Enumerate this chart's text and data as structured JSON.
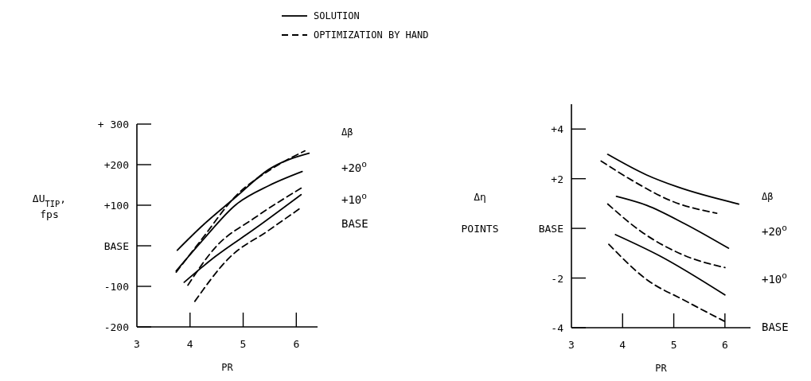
{
  "chart_data": [
    {
      "type": "line",
      "xlabel": "PR",
      "ylabel": "ΔU$_{TIP}$,\nfps",
      "legend": "top",
      "xlim": [
        3,
        6.4
      ],
      "xticks": [
        3,
        4,
        5,
        6
      ],
      "ylim": [
        -200,
        300
      ],
      "yticks": [
        {
          "value": -200,
          "label": "-200"
        },
        {
          "value": -100,
          "label": "-100"
        },
        {
          "value": 0,
          "label": "BASE"
        },
        {
          "value": 100,
          "label": "+100"
        },
        {
          "value": 200,
          "label": "+200"
        },
        {
          "value": 300,
          "label": "+ 300"
        }
      ],
      "annotations": [
        "Δβ",
        "+20$^{o}$",
        "+10$^{o}$",
        "BASE"
      ],
      "series": [
        {
          "name": "SOLUTION",
          "color": "#000000",
          "line_style": "solid",
          "x": [
            3.76,
            4.22,
            4.87,
            5.48,
            6.24
          ],
          "values": [
            -11,
            48,
            121,
            188,
            228
          ]
        },
        {
          "name": "OPTIMIZATION BY HAND",
          "color": "#000000",
          "line_style": "dashed",
          "x": [
            3.74,
            4.22,
            4.87,
            5.48,
            6.16
          ],
          "values": [
            -65,
            16,
            124,
            185,
            234
          ]
        },
        {
          "color": "#000000",
          "line_style": "solid",
          "x": [
            3.74,
            4.22,
            4.87,
            5.48,
            6.11
          ],
          "values": [
            -62,
            11,
            102,
            148,
            183
          ]
        },
        {
          "color": "#000000",
          "line_style": "dashed",
          "x": [
            3.96,
            4.47,
            5.23,
            6.09
          ],
          "values": [
            -97,
            -5,
            70,
            142
          ]
        },
        {
          "color": "#000000",
          "line_style": "solid",
          "x": [
            3.89,
            4.47,
            5.23,
            6.09
          ],
          "values": [
            -90,
            -27,
            43,
            126
          ]
        },
        {
          "color": "#000000",
          "line_style": "dashed",
          "x": [
            4.09,
            4.72,
            5.48,
            6.09
          ],
          "values": [
            -137,
            -32,
            38,
            94
          ]
        }
      ]
    },
    {
      "type": "line",
      "xlabel": "PR",
      "ylabel": "Δη\n\nPOINTS",
      "xlim": [
        3,
        6.5
      ],
      "xticks": [
        3,
        4,
        5,
        6
      ],
      "ylim": [
        -4,
        5
      ],
      "yticks": [
        {
          "value": -4,
          "label": "-4"
        },
        {
          "value": -2,
          "label": "-2"
        },
        {
          "value": 0,
          "label": "BASE"
        },
        {
          "value": 2,
          "label": "+2"
        },
        {
          "value": 4,
          "label": "+4"
        }
      ],
      "annotations": [
        "Δβ",
        "+20$^{o}$",
        "+10$^{o}$",
        "BASE"
      ],
      "series": [
        {
          "color": "#000000",
          "line_style": "solid",
          "x": [
            3.71,
            4.47,
            5.07,
            6.27
          ],
          "values": [
            2.98,
            2.15,
            1.67,
            0.98
          ]
        },
        {
          "color": "#000000",
          "line_style": "dashed",
          "x": [
            3.58,
            4.22,
            4.97,
            5.84
          ],
          "values": [
            2.71,
            1.89,
            1.09,
            0.61
          ]
        },
        {
          "color": "#000000",
          "line_style": "solid",
          "x": [
            3.88,
            4.47,
            5.22,
            6.07
          ],
          "values": [
            1.29,
            0.93,
            0.18,
            -0.8
          ]
        },
        {
          "color": "#000000",
          "line_style": "dashed",
          "x": [
            3.71,
            4.37,
            5.22,
            6.0
          ],
          "values": [
            0.98,
            -0.14,
            -1.1,
            -1.58
          ]
        },
        {
          "color": "#000000",
          "line_style": "solid",
          "x": [
            3.86,
            4.72,
            6.0
          ],
          "values": [
            -0.25,
            -1.1,
            -2.68
          ]
        },
        {
          "color": "#000000",
          "line_style": "dashed",
          "x": [
            3.73,
            4.47,
            5.22,
            5.99
          ],
          "values": [
            -0.64,
            -2.06,
            -2.91,
            -3.74
          ]
        }
      ]
    }
  ]
}
